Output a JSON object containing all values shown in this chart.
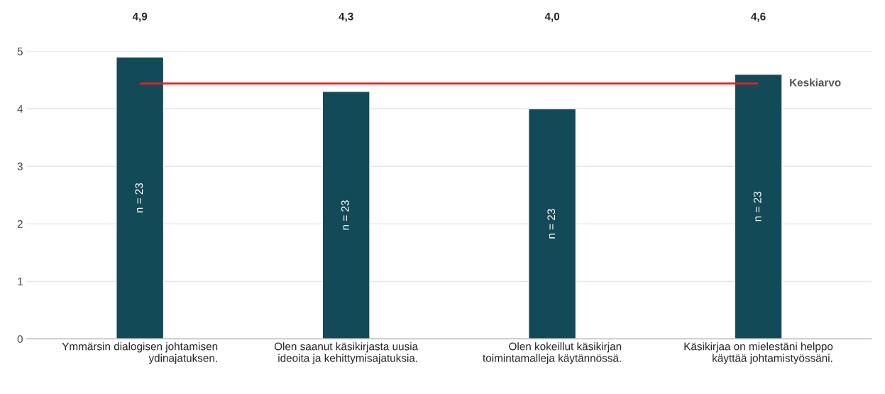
{
  "chart_data": {
    "type": "bar",
    "categories": [
      "Ymmärsin dialogisen johtamisen\nydinajatuksen.",
      "Olen saanut käsikirjasta uusia\nideoita ja kehittymisajatuksia.",
      "Olen kokeillut käsikirjan\ntoimintamalleja käytännössä.",
      "Käsikirjaa on mielestäni helppo\nkäyttää johtamistyössäni."
    ],
    "values": [
      4.9,
      4.3,
      4.0,
      4.6
    ],
    "color": "#134a58",
    "data_labels": true,
    "value_labels": [
      "4,9",
      "4,3",
      "4,0",
      "4,6"
    ],
    "ylim": [
      0,
      5
    ],
    "yticks": [
      0,
      1,
      2,
      3,
      4,
      5
    ],
    "grid": "y",
    "ref_lines": [
      {
        "axis": "y",
        "value": 4.44,
        "label": "Keskiarvo",
        "color": "#e8201f",
        "line_style": "solid"
      }
    ],
    "annotations": [
      "n = 23",
      "n = 23",
      "n = 23",
      "n = 23"
    ]
  }
}
